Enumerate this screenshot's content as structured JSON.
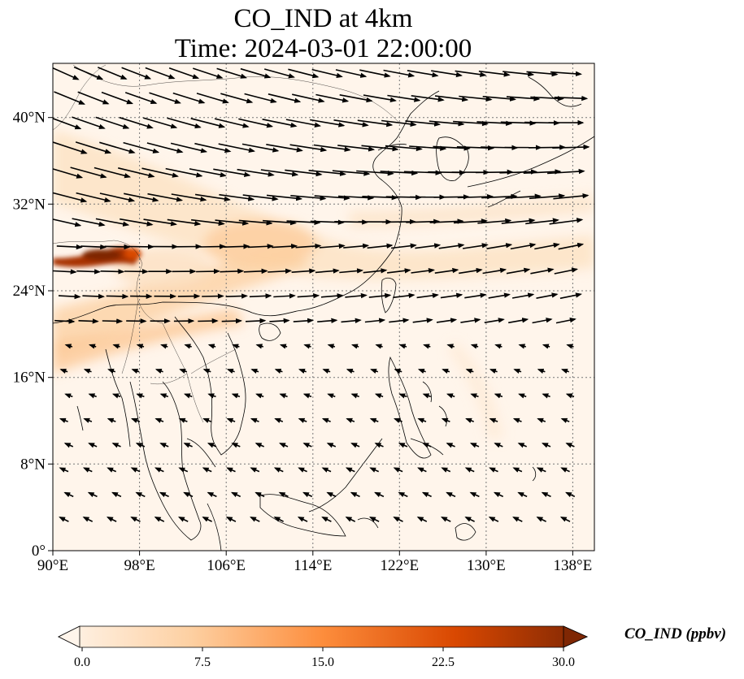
{
  "title": {
    "line1": "CO_IND at 4km",
    "line2": "Time: 2024-03-01 22:00:00"
  },
  "map": {
    "extent": {
      "lon": [
        90,
        140
      ],
      "lat": [
        0,
        45
      ]
    },
    "x_ticks": [
      "90°E",
      "98°E",
      "106°E",
      "114°E",
      "122°E",
      "130°E",
      "138°E"
    ],
    "y_ticks": [
      "0°",
      "8°N",
      "16°N",
      "24°N",
      "32°N",
      "40°N"
    ],
    "gridlines": "dotted",
    "field": "CO_IND",
    "wind_vectors": "shown"
  },
  "colorbar": {
    "label": "CO_IND (ppbv)",
    "ticks": [
      "0.0",
      "7.5",
      "15.0",
      "22.5",
      "30.0"
    ],
    "range": [
      0,
      30
    ],
    "extend": "both",
    "colors": [
      "#fff5eb",
      "#fdd0a2",
      "#fd8d3c",
      "#d94801",
      "#7f2704"
    ]
  }
}
